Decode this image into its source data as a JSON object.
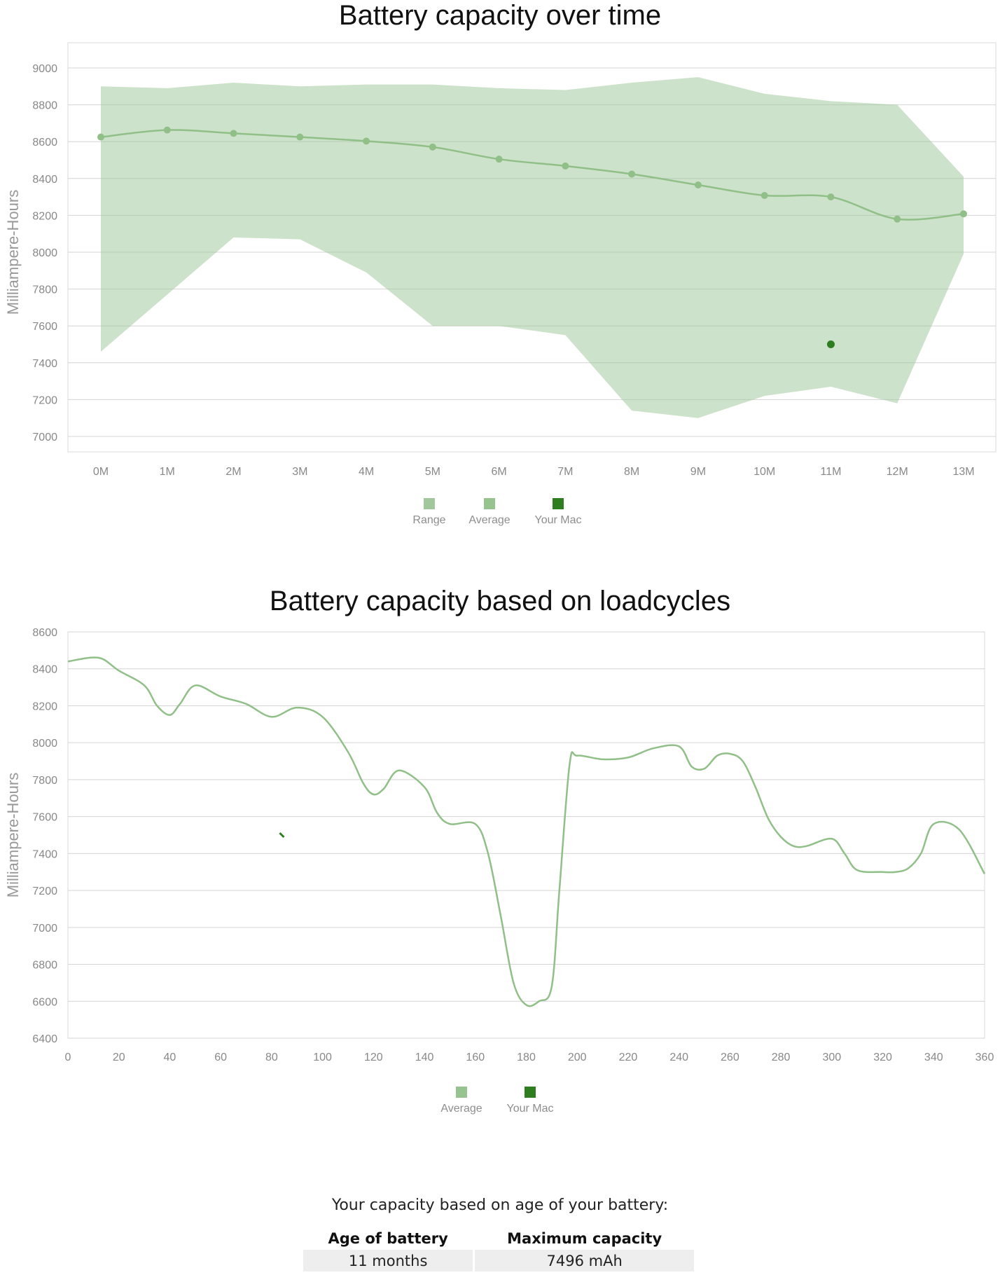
{
  "chart_data": [
    {
      "type": "line",
      "title": "Battery capacity over time",
      "ylabel": "Milliampere-Hours",
      "xlabel": "",
      "ylim": [
        7000,
        9000
      ],
      "yticks": [
        7000,
        7200,
        7400,
        7600,
        7800,
        8000,
        8200,
        8400,
        8600,
        8800,
        9000
      ],
      "categories": [
        "0M",
        "1M",
        "2M",
        "3M",
        "4M",
        "5M",
        "6M",
        "7M",
        "8M",
        "9M",
        "10M",
        "11M",
        "12M",
        "13M"
      ],
      "grid": true,
      "legend_position": "bottom",
      "series": [
        {
          "name": "Range",
          "kind": "area-range",
          "color": "#9cc596",
          "low": [
            7460,
            7770,
            8080,
            8070,
            7890,
            7600,
            7600,
            7550,
            7140,
            7100,
            7220,
            7270,
            7180,
            7990
          ],
          "high": [
            8900,
            8890,
            8920,
            8900,
            8910,
            8910,
            8890,
            8880,
            8920,
            8950,
            8860,
            8820,
            8800,
            8410
          ]
        },
        {
          "name": "Average",
          "kind": "line",
          "color": "#90c088",
          "values": [
            8625,
            8663,
            8645,
            8625,
            8603,
            8571,
            8505,
            8468,
            8424,
            8365,
            8308,
            8300,
            8180,
            8208
          ]
        },
        {
          "name": "Your Mac",
          "kind": "point",
          "color": "#2e7d1f",
          "points": [
            {
              "x": "11M",
              "y": 7500
            }
          ]
        }
      ]
    },
    {
      "type": "line",
      "title": "Battery capacity based on loadcycles",
      "ylabel": "Milliampere-Hours",
      "xlabel": "",
      "xlim": [
        0,
        360
      ],
      "ylim": [
        6400,
        8600
      ],
      "xticks": [
        0,
        20,
        40,
        60,
        80,
        100,
        120,
        140,
        160,
        180,
        200,
        220,
        240,
        260,
        280,
        300,
        320,
        340,
        360
      ],
      "yticks": [
        6400,
        6600,
        6800,
        7000,
        7200,
        7400,
        7600,
        7800,
        8000,
        8200,
        8400,
        8600
      ],
      "grid": true,
      "legend_position": "bottom",
      "series": [
        {
          "name": "Average",
          "kind": "line",
          "color": "#90c088",
          "x": [
            0,
            12,
            20,
            30,
            35,
            40,
            44,
            50,
            60,
            70,
            80,
            90,
            100,
            110,
            116,
            120,
            124,
            130,
            140,
            145,
            150,
            160,
            165,
            170,
            175,
            180,
            185,
            190,
            193,
            197,
            200,
            210,
            220,
            230,
            240,
            245,
            250,
            255,
            260,
            265,
            270,
            275,
            280,
            285,
            290,
            300,
            305,
            310,
            320,
            325,
            330,
            335,
            340,
            350,
            360
          ],
          "y": [
            8440,
            8460,
            8390,
            8310,
            8200,
            8150,
            8210,
            8310,
            8250,
            8210,
            8140,
            8190,
            8140,
            7950,
            7780,
            7720,
            7750,
            7850,
            7760,
            7620,
            7560,
            7560,
            7400,
            7060,
            6700,
            6580,
            6600,
            6680,
            7200,
            7880,
            7930,
            7910,
            7920,
            7970,
            7980,
            7870,
            7860,
            7930,
            7940,
            7900,
            7760,
            7590,
            7490,
            7440,
            7440,
            7480,
            7400,
            7310,
            7300,
            7300,
            7320,
            7400,
            7560,
            7530,
            7290
          ]
        },
        {
          "name": "Your Mac",
          "kind": "point",
          "color": "#2e7d1f",
          "points": [
            {
              "x": 84,
              "y": 7500
            }
          ]
        }
      ]
    }
  ],
  "summary": {
    "heading": "Your capacity based on age of your battery:",
    "columns": [
      "Age of battery",
      "Maximum capacity"
    ],
    "row": [
      "11 months",
      "7496 mAh"
    ]
  }
}
